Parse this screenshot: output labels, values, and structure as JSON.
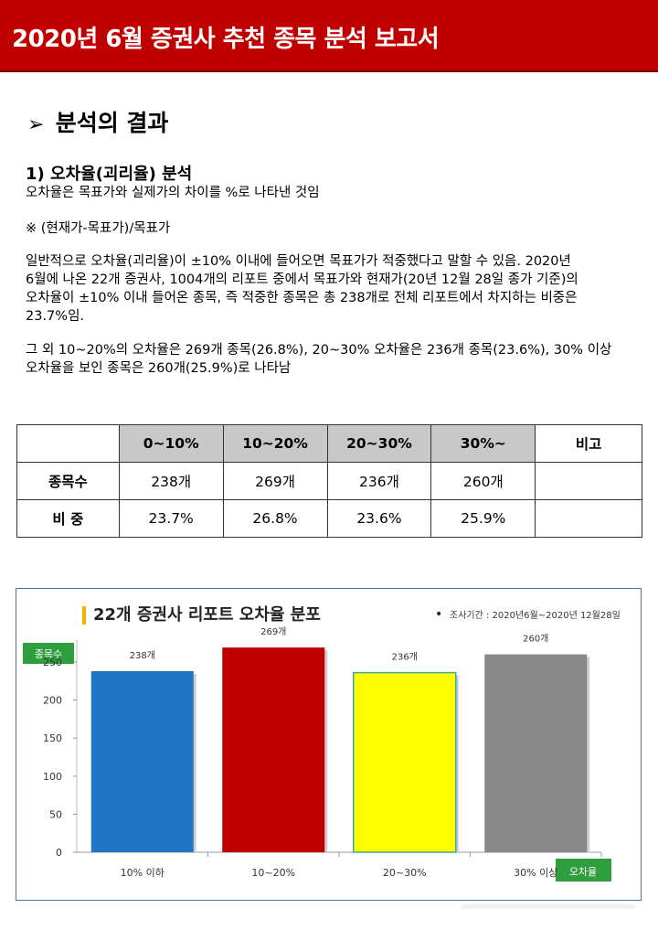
{
  "header": {
    "title": "2020년 6월 증권사 추천 종목 분석 보고서"
  },
  "section": {
    "marker": "➢",
    "title": "분석의 결과"
  },
  "subsection": {
    "title": "1) 오차율(괴리율) 분석"
  },
  "paragraphs": {
    "p1": "오차율은 목표가와 실제가의 차이를 %로 나타낸 것임",
    "p2": "※ (현재가-목표가)/목표가",
    "p3_lines": [
      "일반적으로 오차율(괴리율)이 ±10% 이내에 들어오면 목표가가 적중했다고 말할 수 있음.  2020년",
      "6월에 나온 22개 증권사, 1004개의 리포트 중에서 목표가와 현재가(20년 12월 28일 종가 기준)의",
      "오차율이 ±10% 이내 들어온 종목, 즉 적중한 종목은 총 238개로 전체 리포트에서 차지하는 비중은",
      "23.7%임."
    ],
    "p4_lines": [
      "그 외 10~20%의 오차율은 269개 종목(26.8%), 20~30% 오차율은 236개 종목(23.6%), 30% 이상",
      "오차율을 보인 종목은 260개(25.9%)로 나타남"
    ]
  },
  "table": {
    "headers": [
      "",
      "0~10%",
      "10~20%",
      "20~30%",
      "30%~",
      "비고"
    ],
    "rows": [
      {
        "label": "종목수",
        "cells": [
          "238개",
          "269개",
          "236개",
          "260개",
          ""
        ]
      },
      {
        "label": "비 중",
        "cells": [
          "23.7%",
          "26.8%",
          "23.6%",
          "25.9%",
          ""
        ]
      }
    ]
  },
  "colors": {
    "header_bg": "#c00000",
    "accent_green": "#2e9e3e",
    "title_marker": "#f0b400"
  },
  "chart_data": {
    "type": "bar",
    "title": "22개 증권사 리포트 오차율 분포",
    "note": "조사기간 : 2020년6월~2020년 12월28일",
    "ylabel": "종목수",
    "xlabel": "오차율",
    "categories": [
      "10% 이하",
      "10~20%",
      "20~30%",
      "30% 이상"
    ],
    "values": [
      238,
      269,
      236,
      260
    ],
    "data_labels": [
      "238개",
      "269개",
      "236개",
      "260개"
    ],
    "colors": [
      "#1f74c4",
      "#c00000",
      "#ffff00",
      "#888888"
    ],
    "yticks": [
      0,
      50,
      100,
      150,
      200,
      250
    ],
    "ylim": [
      0,
      280
    ],
    "grid": false,
    "legend": "none"
  }
}
